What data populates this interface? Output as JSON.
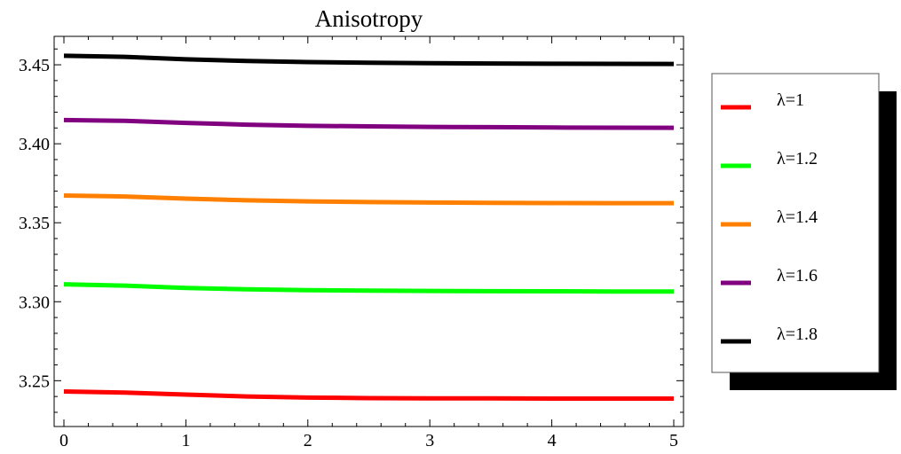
{
  "chart_data": {
    "type": "line",
    "title": "Anisotropy",
    "xlabel": "",
    "ylabel": "",
    "xlim": [
      -0.08,
      5.08
    ],
    "ylim": [
      3.221,
      3.468
    ],
    "xticks": [
      0,
      1,
      2,
      3,
      4,
      5
    ],
    "xtick_labels": [
      "0",
      "1",
      "2",
      "3",
      "4",
      "5"
    ],
    "yticks": [
      3.25,
      3.3,
      3.35,
      3.4,
      3.45
    ],
    "ytick_labels": [
      "3.25",
      "3.30",
      "3.35",
      "3.40",
      "3.45"
    ],
    "x_minor_step": 0.2,
    "y_minor_step": 0.01,
    "grid": false,
    "legend_position": "right",
    "series": [
      {
        "name": "λ=1",
        "color": "#ff0000",
        "x": [
          0,
          0.5,
          1,
          1.5,
          2,
          2.5,
          3,
          3.5,
          4,
          4.5,
          5
        ],
        "y": [
          3.2432,
          3.2425,
          3.2412,
          3.24,
          3.2393,
          3.239,
          3.2388,
          3.2388,
          3.2387,
          3.2387,
          3.2387
        ]
      },
      {
        "name": "λ=1.2",
        "color": "#00ff00",
        "x": [
          0,
          0.5,
          1,
          1.5,
          2,
          2.5,
          3,
          3.5,
          4,
          4.5,
          5
        ],
        "y": [
          3.311,
          3.3102,
          3.3087,
          3.3079,
          3.3073,
          3.307,
          3.3068,
          3.3067,
          3.3066,
          3.3065,
          3.3065
        ]
      },
      {
        "name": "λ=1.4",
        "color": "#ff8000",
        "x": [
          0,
          0.5,
          1,
          1.5,
          2,
          2.5,
          3,
          3.5,
          4,
          4.5,
          5
        ],
        "y": [
          3.3672,
          3.3666,
          3.3653,
          3.3642,
          3.3635,
          3.3631,
          3.3628,
          3.3626,
          3.3625,
          3.3624,
          3.3624
        ]
      },
      {
        "name": "λ=1.6",
        "color": "#800080",
        "x": [
          0,
          0.5,
          1,
          1.5,
          2,
          2.5,
          3,
          3.5,
          4,
          4.5,
          5
        ],
        "y": [
          3.415,
          3.4145,
          3.4132,
          3.4121,
          3.4114,
          3.411,
          3.4107,
          3.4105,
          3.4103,
          3.4102,
          3.4101
        ]
      },
      {
        "name": "λ=1.8",
        "color": "#000000",
        "x": [
          0,
          0.5,
          1,
          1.5,
          2,
          2.5,
          3,
          3.5,
          4,
          4.5,
          5
        ],
        "y": [
          3.4557,
          3.455,
          3.4535,
          3.4524,
          3.4517,
          3.4513,
          3.451,
          3.4508,
          3.4507,
          3.4506,
          3.4505
        ]
      }
    ]
  }
}
